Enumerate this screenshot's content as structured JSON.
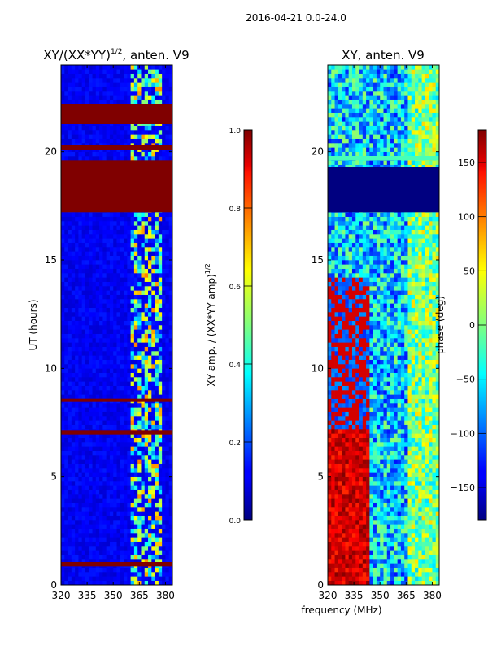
{
  "suptitle": "2016-04-21 0.0-24.0",
  "chart_data": [
    {
      "type": "heatmap",
      "title": "XY/(XX*YY)",
      "title_superscript": "1/2",
      "title_suffix": ", anten. V9",
      "xlabel": "",
      "ylabel": "UT (hours)",
      "xlim": [
        320,
        384
      ],
      "ylim": [
        0,
        24
      ],
      "x_ticks": [
        320,
        335,
        350,
        365,
        380
      ],
      "y_ticks": [
        0,
        5,
        10,
        15,
        20
      ],
      "colorbar": {
        "label": "XY amp. / (XX*YY amp)",
        "label_superscript": "1/2",
        "range": [
          0.0,
          1.0
        ],
        "ticks": [
          "0.0",
          "0.2",
          "0.4",
          "0.6",
          "0.8",
          "1.0"
        ],
        "tick_values": [
          0.0,
          0.2,
          0.4,
          0.6,
          0.8,
          1.0
        ],
        "colormap": "jet"
      },
      "bands": [
        {
          "t0": 0.85,
          "t1": 1.05,
          "value": 1.0
        },
        {
          "t0": 6.95,
          "t1": 7.15,
          "value": 1.0
        },
        {
          "t0": 8.45,
          "t1": 8.6,
          "value": 1.0
        },
        {
          "t0": 17.2,
          "t1": 19.6,
          "value": 1.0
        },
        {
          "t0": 20.1,
          "t1": 20.3,
          "value": 1.0
        },
        {
          "t0": 21.3,
          "t1": 22.2,
          "value": 1.0
        }
      ]
    },
    {
      "type": "heatmap",
      "title": "XY, anten. V9",
      "xlabel": "frequency (MHz)",
      "ylabel": "",
      "xlim": [
        320,
        384
      ],
      "ylim": [
        0,
        24
      ],
      "x_ticks": [
        320,
        335,
        350,
        365,
        380
      ],
      "y_ticks": [
        0,
        5,
        10,
        15,
        20
      ],
      "colorbar": {
        "label": "phase (deg)",
        "range": [
          -180,
          180
        ],
        "ticks": [
          "−150",
          "−100",
          "−50",
          "0",
          "50",
          "100",
          "150"
        ],
        "tick_values": [
          -150,
          -100,
          -50,
          0,
          50,
          100,
          150
        ],
        "colormap": "jet"
      },
      "bands": [
        {
          "t0": 17.2,
          "t1": 19.3,
          "value": -180
        },
        {
          "t0": 19.6,
          "t1": 19.8,
          "value": -20
        }
      ]
    }
  ]
}
